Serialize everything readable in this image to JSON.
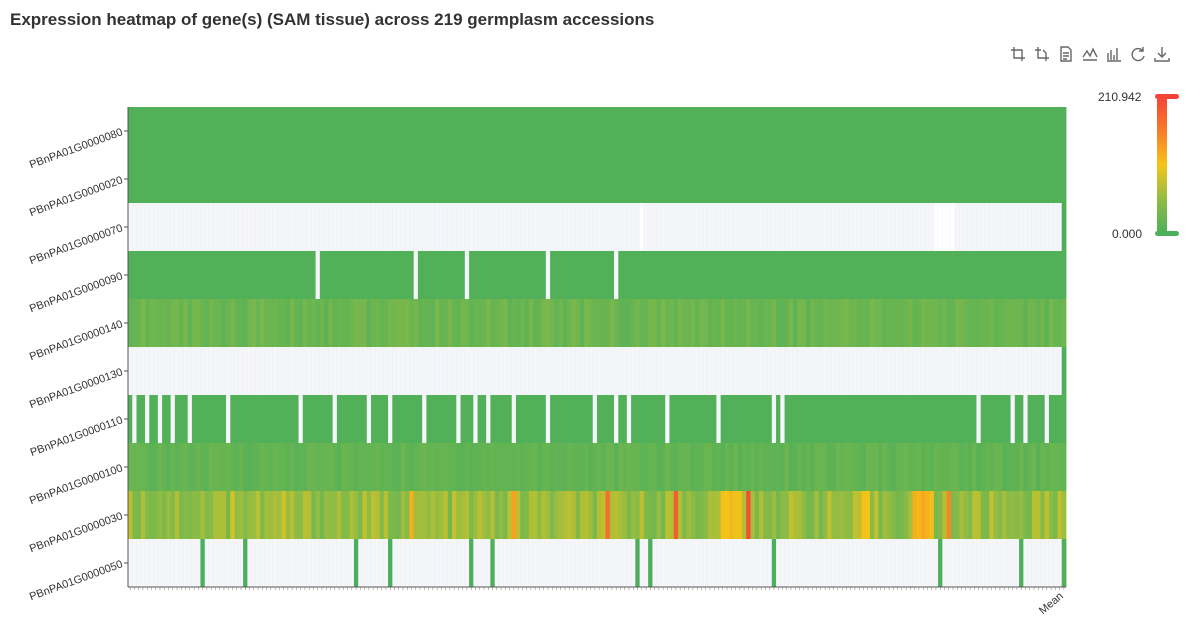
{
  "title": "Expression heatmap of gene(s) (SAM tissue) across 219 germplasm accessions",
  "toolbox": [
    {
      "name": "zoom-in-icon",
      "label": "Zoom"
    },
    {
      "name": "zoom-reset-icon",
      "label": "Zoom reset"
    },
    {
      "name": "data-view-icon",
      "label": "Data view"
    },
    {
      "name": "line-chart-icon",
      "label": "Switch to line chart"
    },
    {
      "name": "bar-chart-icon",
      "label": "Switch to bar chart"
    },
    {
      "name": "restore-icon",
      "label": "Restore"
    },
    {
      "name": "download-icon",
      "label": "Save as image"
    }
  ],
  "visual_map": {
    "max_label": "210.942",
    "min_label": "0.000",
    "colors": [
      "#4caf5a",
      "#8fbc45",
      "#f5c518",
      "#f77a2a",
      "#f44336"
    ]
  },
  "chart_data": {
    "type": "heatmap",
    "title": "Expression heatmap of gene(s) (SAM tissue) across 219 germplasm accessions",
    "n_accessions": 219,
    "last_category": "Mean",
    "value_range": [
      0,
      210.942
    ],
    "missing_color": "#f5f6fa",
    "genes": [
      "PBnPA01G0000050",
      "PBnPA01G0000030",
      "PBnPA01G0000100",
      "PBnPA01G0000110",
      "PBnPA01G0000130",
      "PBnPA01G0000140",
      "PBnPA01G0000090",
      "PBnPA01G0000070",
      "PBnPA01G0000020",
      "PBnPA01G0000080"
    ],
    "rows": [
      {
        "gene": "PBnPA01G0000050",
        "mode": "sparse",
        "base": 0,
        "mean": 5,
        "present": [
          17,
          27,
          53,
          61,
          80,
          85,
          119,
          122,
          151,
          190,
          209
        ]
      },
      {
        "gene": "PBnPA01G0000030",
        "mode": "dense",
        "base": 55,
        "mean": 60,
        "hot": [
          [
            24,
            90
          ],
          [
            36,
            85
          ],
          [
            66,
            120
          ],
          [
            90,
            130
          ],
          [
            112,
            170
          ],
          [
            128,
            110
          ],
          [
            128,
            185
          ],
          [
            139,
            110
          ],
          [
            140,
            105
          ],
          [
            141,
            115
          ],
          [
            142,
            100
          ],
          [
            143,
            110
          ],
          [
            145,
            200
          ],
          [
            172,
            110
          ],
          [
            173,
            105
          ],
          [
            184,
            120
          ],
          [
            185,
            115
          ],
          [
            186,
            125
          ],
          [
            187,
            118
          ],
          [
            188,
            110
          ],
          [
            192,
            150
          ]
        ]
      },
      {
        "gene": "PBnPA01G0000100",
        "mode": "dense",
        "base": 18,
        "mean": 20,
        "hot": []
      },
      {
        "gene": "PBnPA01G0000110",
        "mode": "gaps",
        "base": 5,
        "mean": 5,
        "gaps": [
          1,
          4,
          7,
          10,
          14,
          23,
          40,
          48,
          56,
          61,
          69,
          77,
          81,
          84,
          90,
          98,
          109,
          114,
          117,
          126,
          138,
          151,
          153,
          199,
          207,
          210,
          215
        ]
      },
      {
        "gene": "PBnPA01G0000130",
        "mode": "empty",
        "base": 0,
        "mean": 3
      },
      {
        "gene": "PBnPA01G0000140",
        "mode": "dense",
        "base": 25,
        "mean": 28,
        "hot": []
      },
      {
        "gene": "PBnPA01G0000090",
        "mode": "gaps",
        "base": 4,
        "mean": 4,
        "gaps": [
          44,
          67,
          79,
          98,
          114
        ]
      },
      {
        "gene": "PBnPA01G0000070",
        "mode": "gaps_inverse",
        "base": 0,
        "mean": 2,
        "gaps": [
          120,
          189,
          190,
          191,
          192,
          193
        ]
      },
      {
        "gene": "PBnPA01G0000020",
        "mode": "solid",
        "base": 5,
        "mean": 5
      },
      {
        "gene": "PBnPA01G0000080",
        "mode": "solid",
        "base": 5,
        "mean": 5
      }
    ]
  }
}
